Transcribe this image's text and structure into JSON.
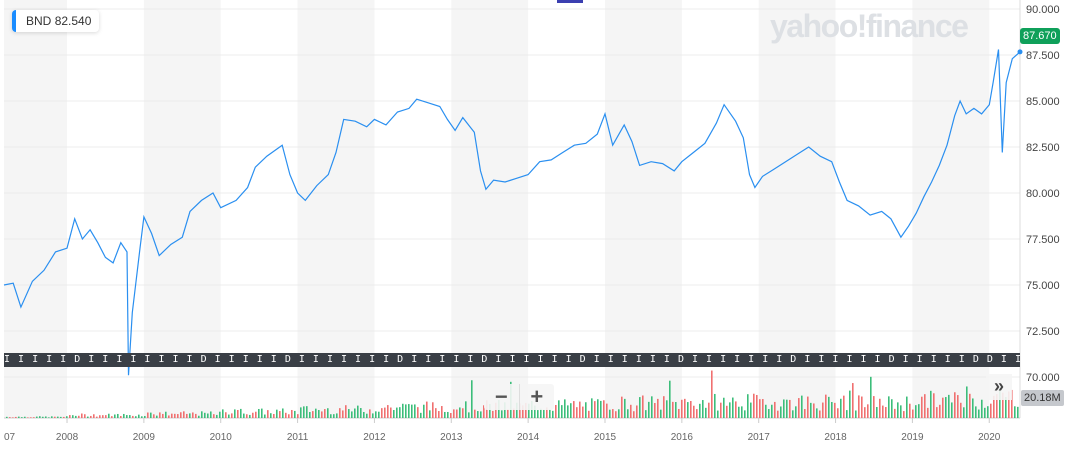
{
  "chart_data": {
    "type": "line",
    "title": "BND",
    "ticker": "BND",
    "legend_value": "82.540",
    "last_price_label": "87.670",
    "volume_label": "20.18M",
    "brand": "yahoo!finance",
    "x_ticks": [
      "07",
      "2008",
      "2009",
      "2010",
      "2011",
      "2012",
      "2013",
      "2014",
      "2015",
      "2016",
      "2017",
      "2018",
      "2019",
      "2020"
    ],
    "y_ticks": [
      "90.000",
      "87.500",
      "85.000",
      "82.500",
      "80.000",
      "77.500",
      "75.000",
      "72.500",
      "70.000"
    ],
    "ylim": [
      70,
      90
    ],
    "xlim": [
      2007.18,
      2020.4
    ],
    "price_series": [
      [
        2007.18,
        75.0
      ],
      [
        2007.3,
        75.1
      ],
      [
        2007.4,
        73.8
      ],
      [
        2007.55,
        75.2
      ],
      [
        2007.7,
        75.8
      ],
      [
        2007.85,
        76.8
      ],
      [
        2008.0,
        77.0
      ],
      [
        2008.1,
        78.6
      ],
      [
        2008.2,
        77.5
      ],
      [
        2008.3,
        78.0
      ],
      [
        2008.4,
        77.3
      ],
      [
        2008.5,
        76.5
      ],
      [
        2008.6,
        76.2
      ],
      [
        2008.7,
        77.3
      ],
      [
        2008.78,
        76.8
      ],
      [
        2008.8,
        70.1
      ],
      [
        2008.85,
        73.5
      ],
      [
        2008.95,
        77.0
      ],
      [
        2009.0,
        78.7
      ],
      [
        2009.1,
        77.8
      ],
      [
        2009.2,
        76.6
      ],
      [
        2009.35,
        77.2
      ],
      [
        2009.5,
        77.6
      ],
      [
        2009.6,
        79.0
      ],
      [
        2009.75,
        79.6
      ],
      [
        2009.9,
        80.0
      ],
      [
        2010.0,
        79.2
      ],
      [
        2010.2,
        79.6
      ],
      [
        2010.35,
        80.3
      ],
      [
        2010.45,
        81.4
      ],
      [
        2010.6,
        82.0
      ],
      [
        2010.8,
        82.6
      ],
      [
        2010.9,
        81.0
      ],
      [
        2011.0,
        80.0
      ],
      [
        2011.1,
        79.6
      ],
      [
        2011.25,
        80.4
      ],
      [
        2011.4,
        81.0
      ],
      [
        2011.5,
        82.2
      ],
      [
        2011.6,
        84.0
      ],
      [
        2011.75,
        83.9
      ],
      [
        2011.9,
        83.6
      ],
      [
        2012.0,
        84.0
      ],
      [
        2012.15,
        83.7
      ],
      [
        2012.3,
        84.4
      ],
      [
        2012.45,
        84.6
      ],
      [
        2012.55,
        85.1
      ],
      [
        2012.7,
        84.9
      ],
      [
        2012.85,
        84.7
      ],
      [
        2012.95,
        84.0
      ],
      [
        2013.05,
        83.4
      ],
      [
        2013.15,
        84.1
      ],
      [
        2013.3,
        83.3
      ],
      [
        2013.38,
        81.2
      ],
      [
        2013.45,
        80.2
      ],
      [
        2013.55,
        80.7
      ],
      [
        2013.7,
        80.6
      ],
      [
        2013.85,
        80.8
      ],
      [
        2014.0,
        81.0
      ],
      [
        2014.15,
        81.7
      ],
      [
        2014.3,
        81.8
      ],
      [
        2014.45,
        82.2
      ],
      [
        2014.6,
        82.6
      ],
      [
        2014.75,
        82.7
      ],
      [
        2014.9,
        83.2
      ],
      [
        2015.0,
        84.3
      ],
      [
        2015.1,
        82.6
      ],
      [
        2015.25,
        83.7
      ],
      [
        2015.35,
        82.8
      ],
      [
        2015.45,
        81.5
      ],
      [
        2015.6,
        81.7
      ],
      [
        2015.75,
        81.6
      ],
      [
        2015.9,
        81.2
      ],
      [
        2016.0,
        81.7
      ],
      [
        2016.15,
        82.2
      ],
      [
        2016.3,
        82.7
      ],
      [
        2016.45,
        83.8
      ],
      [
        2016.55,
        84.8
      ],
      [
        2016.7,
        83.9
      ],
      [
        2016.8,
        83.0
      ],
      [
        2016.88,
        81.0
      ],
      [
        2016.95,
        80.3
      ],
      [
        2017.05,
        80.9
      ],
      [
        2017.2,
        81.3
      ],
      [
        2017.35,
        81.7
      ],
      [
        2017.5,
        82.1
      ],
      [
        2017.65,
        82.5
      ],
      [
        2017.8,
        82.0
      ],
      [
        2017.95,
        81.7
      ],
      [
        2018.05,
        80.6
      ],
      [
        2018.15,
        79.6
      ],
      [
        2018.3,
        79.3
      ],
      [
        2018.45,
        78.8
      ],
      [
        2018.6,
        79.0
      ],
      [
        2018.72,
        78.6
      ],
      [
        2018.85,
        77.6
      ],
      [
        2018.95,
        78.2
      ],
      [
        2019.05,
        78.9
      ],
      [
        2019.15,
        79.8
      ],
      [
        2019.25,
        80.6
      ],
      [
        2019.35,
        81.5
      ],
      [
        2019.45,
        82.6
      ],
      [
        2019.55,
        84.2
      ],
      [
        2019.62,
        85.0
      ],
      [
        2019.7,
        84.3
      ],
      [
        2019.8,
        84.6
      ],
      [
        2019.9,
        84.3
      ],
      [
        2020.0,
        84.8
      ],
      [
        2020.05,
        86.0
      ],
      [
        2020.12,
        87.8
      ],
      [
        2020.17,
        82.2
      ],
      [
        2020.22,
        86.0
      ],
      [
        2020.3,
        87.3
      ],
      [
        2020.4,
        87.67
      ]
    ],
    "volume_yearly_avg_M": [
      [
        2007,
        0.6
      ],
      [
        2008,
        1.5
      ],
      [
        2009,
        2.2
      ],
      [
        2010,
        3.2
      ],
      [
        2011,
        4.2
      ],
      [
        2012,
        5.5
      ],
      [
        2013,
        6.0
      ],
      [
        2014,
        6.5
      ],
      [
        2015,
        7.5
      ],
      [
        2016,
        8.0
      ],
      [
        2017,
        8.0
      ],
      [
        2018,
        7.5
      ],
      [
        2019,
        9.0
      ],
      [
        2020,
        11.0
      ]
    ],
    "volume_max_M": 25,
    "colors": {
      "line": "#2a8ff0",
      "up": "#3cbd7a",
      "down": "#f07070",
      "last": "#0fa05a"
    }
  },
  "events_strip": "I I I I I D I I I I I I I I D I I I I I D I I I I I I I D I I I I I D I I I I I I D I I I I I I D I I I I I I I D I I I I I I D I I I I I D D I I I I I I D I I I I I I I I D I I I I I D I I I I I I D I I I I I I I D I I I I I I D I I I I I I D I I I I I D I I I I I I D I I I I I I I D I I I D I I I I I I I D I I I I I D I I I I I I D",
  "controls": {
    "zoom_out": "−",
    "zoom_in": "+",
    "more": "»"
  }
}
